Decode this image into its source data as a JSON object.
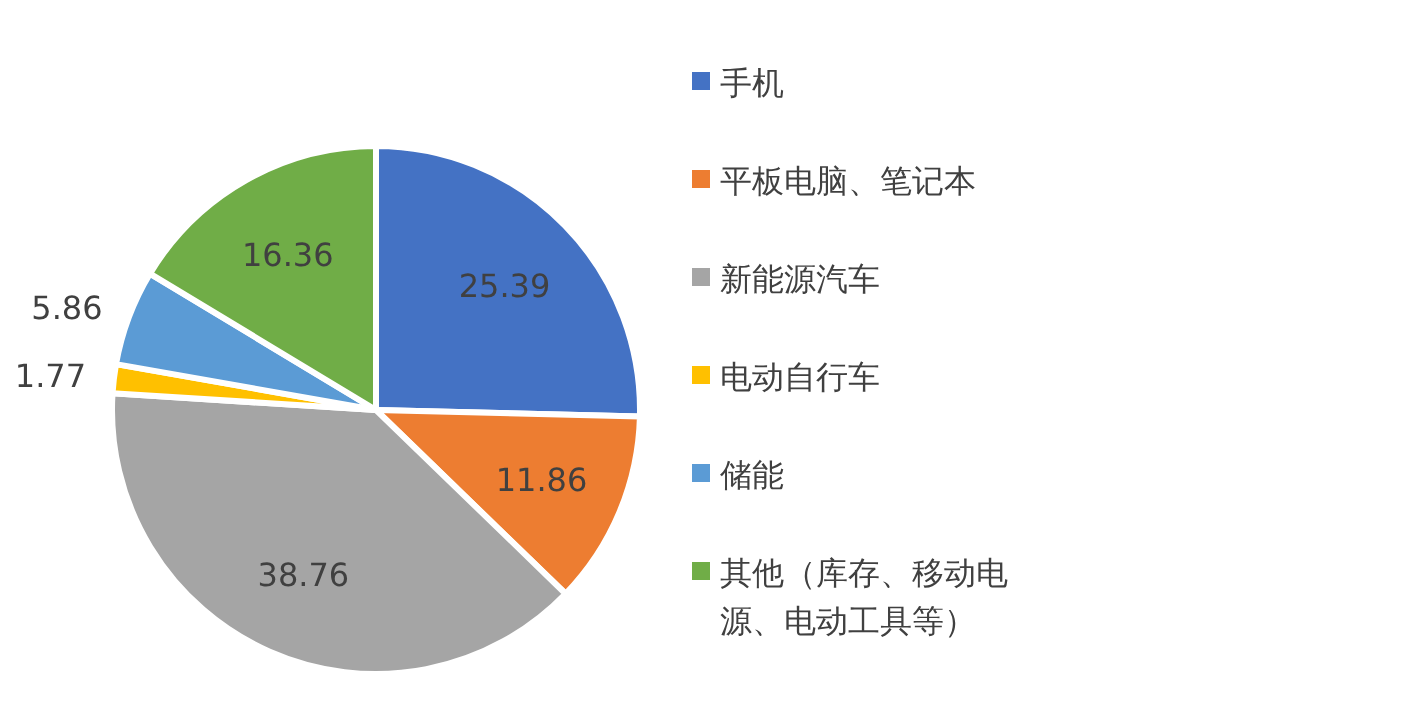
{
  "chart_data": {
    "type": "pie",
    "categories": [
      "手机",
      "平板电脑、笔记本",
      "新能源汽车",
      "电动自行车",
      "储能",
      "其他（库存、移动电源、电动工具等）"
    ],
    "values": [
      25.39,
      11.86,
      38.76,
      1.77,
      5.86,
      16.36
    ],
    "colors": [
      "#4472c4",
      "#ed7d31",
      "#a5a5a5",
      "#ffc000",
      "#5b9bd5",
      "#70ad47"
    ],
    "data_labels": true,
    "legend": "right"
  }
}
